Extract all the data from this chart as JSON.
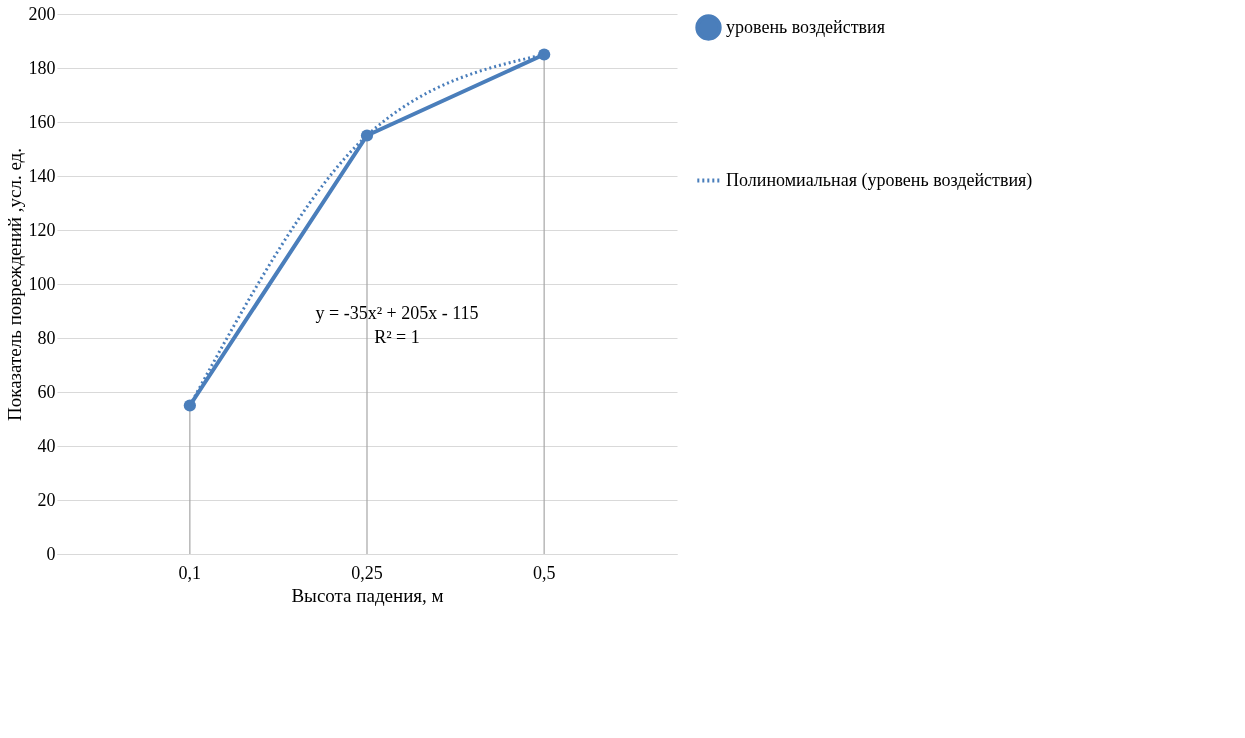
{
  "chart_data": {
    "type": "line",
    "xlabel": "Высота падения, м",
    "ylabel": "Показатель повреждений ,усл. ед.",
    "categories": [
      "0,1",
      "0,25",
      "0,5"
    ],
    "series": [
      {
        "name": "уровень воздействия",
        "color": "#4a7ebb",
        "values": [
          55,
          155,
          185
        ],
        "marker": "circle",
        "line_style": "solid"
      },
      {
        "name": "Полиномиальная (уровень воздействия)",
        "color": "#4a7ebb",
        "values": [
          55,
          155,
          185
        ],
        "marker": "none",
        "line_style": "dotted"
      }
    ],
    "ref_lines": [
      {
        "axis": "x",
        "value": "0,1",
        "color": "#a6a6a6"
      },
      {
        "axis": "x",
        "value": "0,25",
        "color": "#a6a6a6"
      },
      {
        "axis": "x",
        "value": "0,5",
        "color": "#a6a6a6"
      }
    ],
    "annotations": [
      "y = -35x² + 205x - 115",
      "R² = 1"
    ],
    "ylim": [
      0,
      200
    ],
    "yticks": [
      0,
      20,
      40,
      60,
      80,
      100,
      120,
      140,
      160,
      180,
      200
    ],
    "grid": "y",
    "legend": "right"
  }
}
